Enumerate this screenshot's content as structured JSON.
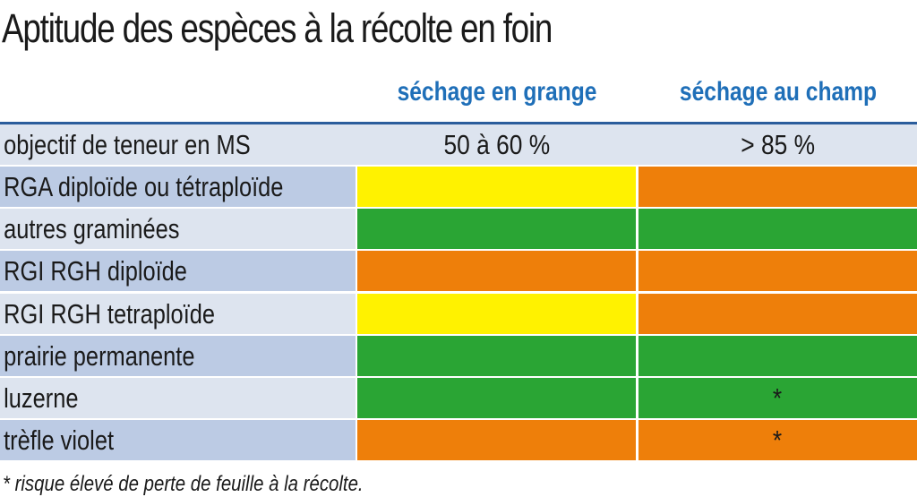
{
  "title": "Aptitude des espèces à la récolte en foin",
  "columns": [
    "séchage en grange",
    "séchage au champ"
  ],
  "objective": {
    "label": "objectif de teneur en MS",
    "values": [
      "50 à 60 %",
      "> 85 %"
    ]
  },
  "rows": [
    {
      "label": "RGA diploïde ou tétraploïde",
      "cells": [
        {
          "status": "yellow",
          "mark": ""
        },
        {
          "status": "orange",
          "mark": ""
        }
      ]
    },
    {
      "label": "autres graminées",
      "cells": [
        {
          "status": "green",
          "mark": ""
        },
        {
          "status": "green",
          "mark": ""
        }
      ]
    },
    {
      "label": "RGI RGH diploïde",
      "cells": [
        {
          "status": "orange",
          "mark": ""
        },
        {
          "status": "orange",
          "mark": ""
        }
      ]
    },
    {
      "label": "RGI RGH tetraploïde",
      "cells": [
        {
          "status": "yellow",
          "mark": ""
        },
        {
          "status": "orange",
          "mark": ""
        }
      ]
    },
    {
      "label": "prairie permanente",
      "cells": [
        {
          "status": "green",
          "mark": ""
        },
        {
          "status": "green",
          "mark": ""
        }
      ]
    },
    {
      "label": "luzerne",
      "cells": [
        {
          "status": "green",
          "mark": ""
        },
        {
          "status": "green",
          "mark": "*"
        }
      ]
    },
    {
      "label": "trèfle violet",
      "cells": [
        {
          "status": "orange",
          "mark": ""
        },
        {
          "status": "orange",
          "mark": "*"
        }
      ]
    }
  ],
  "colors": {
    "yellow": "#fff200",
    "orange": "#ee7f0a",
    "green": "#2aa534",
    "header_blue": "#1f6fb8"
  },
  "footnote": "* risque élevé de perte de feuille à la récolte."
}
